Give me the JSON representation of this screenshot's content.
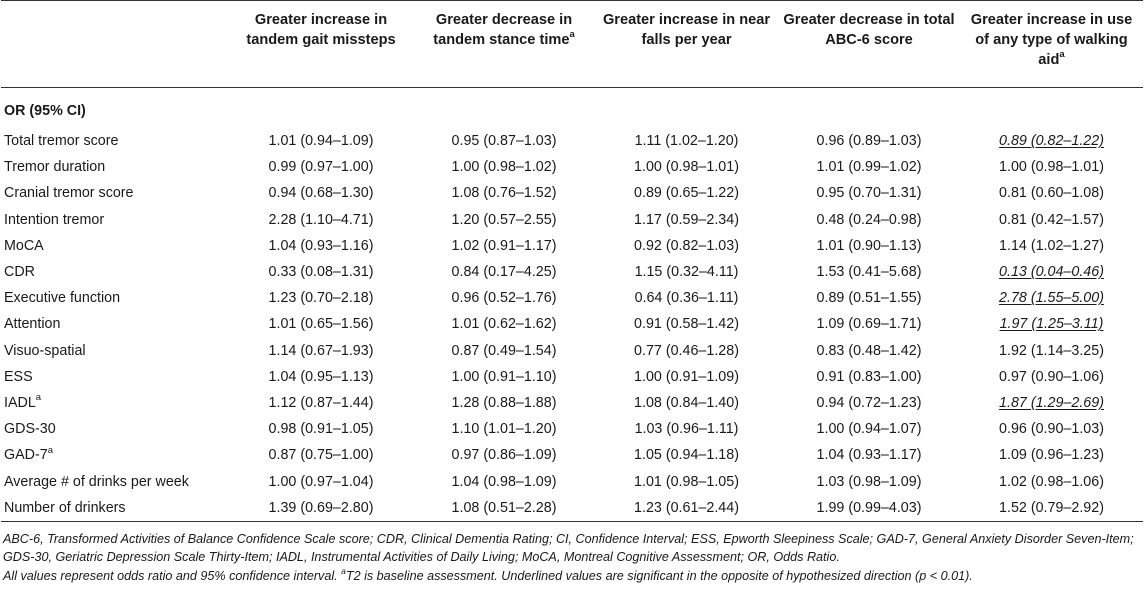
{
  "headers": [
    {
      "text": "Greater increase in tandem gait missteps",
      "sup": ""
    },
    {
      "text": "Greater decrease in tandem stance time",
      "sup": "a"
    },
    {
      "text": "Greater increase in near falls per year",
      "sup": ""
    },
    {
      "text": "Greater decrease in total ABC-6 score",
      "sup": ""
    },
    {
      "text": "Greater increase in use of any type of walking aid",
      "sup": "a"
    }
  ],
  "section_label": "OR (95% CI)",
  "rows": [
    {
      "label": "Total tremor score",
      "sup": "",
      "values": [
        "1.01 (0.94–1.09)",
        "0.95 (0.87–1.03)",
        "1.11 (1.02–1.20)",
        "0.96 (0.89–1.03)",
        "0.89 (0.82–1.22)"
      ],
      "underlined": [
        false,
        false,
        false,
        false,
        true
      ]
    },
    {
      "label": "Tremor duration",
      "sup": "",
      "values": [
        "0.99 (0.97–1.00)",
        "1.00 (0.98–1.02)",
        "1.00 (0.98–1.01)",
        "1.01 (0.99–1.02)",
        "1.00 (0.98–1.01)"
      ],
      "underlined": [
        false,
        false,
        false,
        false,
        false
      ]
    },
    {
      "label": "Cranial tremor score",
      "sup": "",
      "values": [
        "0.94 (0.68–1.30)",
        "1.08 (0.76–1.52)",
        "0.89 (0.65–1.22)",
        "0.95 (0.70–1.31)",
        "0.81 (0.60–1.08)"
      ],
      "underlined": [
        false,
        false,
        false,
        false,
        false
      ]
    },
    {
      "label": "Intention tremor",
      "sup": "",
      "values": [
        "2.28 (1.10–4.71)",
        "1.20 (0.57–2.55)",
        "1.17 (0.59–2.34)",
        "0.48 (0.24–0.98)",
        "0.81 (0.42–1.57)"
      ],
      "underlined": [
        false,
        false,
        false,
        false,
        false
      ]
    },
    {
      "label": "MoCA",
      "sup": "",
      "values": [
        "1.04 (0.93–1.16)",
        "1.02 (0.91–1.17)",
        "0.92 (0.82–1.03)",
        "1.01 (0.90–1.13)",
        "1.14 (1.02–1.27)"
      ],
      "underlined": [
        false,
        false,
        false,
        false,
        false
      ]
    },
    {
      "label": "CDR",
      "sup": "",
      "values": [
        "0.33 (0.08–1.31)",
        "0.84 (0.17–4.25)",
        "1.15 (0.32–4.11)",
        "1.53 (0.41–5.68)",
        "0.13 (0.04–0.46)"
      ],
      "underlined": [
        false,
        false,
        false,
        false,
        true
      ]
    },
    {
      "label": "Executive function",
      "sup": "",
      "values": [
        "1.23 (0.70–2.18)",
        "0.96 (0.52–1.76)",
        "0.64 (0.36–1.11)",
        "0.89 (0.51–1.55)",
        "2.78 (1.55–5.00)"
      ],
      "underlined": [
        false,
        false,
        false,
        false,
        true
      ]
    },
    {
      "label": "Attention",
      "sup": "",
      "values": [
        "1.01 (0.65–1.56)",
        "1.01 (0.62–1.62)",
        "0.91 (0.58–1.42)",
        "1.09 (0.69–1.71)",
        "1.97 (1.25–3.11)"
      ],
      "underlined": [
        false,
        false,
        false,
        false,
        true
      ]
    },
    {
      "label": "Visuo-spatial",
      "sup": "",
      "values": [
        "1.14 (0.67–1.93)",
        "0.87 (0.49–1.54)",
        "0.77 (0.46–1.28)",
        "0.83 (0.48–1.42)",
        "1.92 (1.14–3.25)"
      ],
      "underlined": [
        false,
        false,
        false,
        false,
        false
      ]
    },
    {
      "label": "ESS",
      "sup": "",
      "values": [
        "1.04 (0.95–1.13)",
        "1.00 (0.91–1.10)",
        "1.00 (0.91–1.09)",
        "0.91 (0.83–1.00)",
        "0.97 (0.90–1.06)"
      ],
      "underlined": [
        false,
        false,
        false,
        false,
        false
      ]
    },
    {
      "label": "IADL",
      "sup": "a",
      "values": [
        "1.12 (0.87–1.44)",
        "1.28 (0.88–1.88)",
        "1.08 (0.84–1.40)",
        "0.94 (0.72–1.23)",
        "1.87 (1.29–2.69)"
      ],
      "underlined": [
        false,
        false,
        false,
        false,
        true
      ]
    },
    {
      "label": "GDS-30",
      "sup": "",
      "values": [
        "0.98 (0.91–1.05)",
        "1.10 (1.01–1.20)",
        "1.03 (0.96–1.11)",
        "1.00 (0.94–1.07)",
        "0.96 (0.90–1.03)"
      ],
      "underlined": [
        false,
        false,
        false,
        false,
        false
      ]
    },
    {
      "label": "GAD-7",
      "sup": "a",
      "values": [
        "0.87 (0.75–1.00)",
        "0.97 (0.86–1.09)",
        "1.05 (0.94–1.18)",
        "1.04 (0.93–1.17)",
        "1.09 (0.96–1.23)"
      ],
      "underlined": [
        false,
        false,
        false,
        false,
        false
      ]
    },
    {
      "label": "Average # of drinks per week",
      "sup": "",
      "values": [
        "1.00 (0.97–1.04)",
        "1.04 (0.98–1.09)",
        "1.01 (0.98–1.05)",
        "1.03 (0.98–1.09)",
        "1.02 (0.98–1.06)"
      ],
      "underlined": [
        false,
        false,
        false,
        false,
        false
      ]
    },
    {
      "label": "Number of drinkers",
      "sup": "",
      "values": [
        "1.39 (0.69–2.80)",
        "1.08 (0.51–2.28)",
        "1.23 (0.61–2.44)",
        "1.99 (0.99–4.03)",
        "1.52 (0.79–2.92)"
      ],
      "underlined": [
        false,
        false,
        false,
        false,
        false
      ]
    }
  ],
  "footnotes": {
    "abbreviations": "ABC-6, Transformed Activities of Balance Confidence Scale score; CDR, Clinical Dementia Rating; CI, Confidence Interval; ESS, Epworth Sleepiness Scale; GAD-7, General Anxiety Disorder Seven-Item; GDS-30, Geriatric Depression Scale Thirty-Item; IADL, Instrumental Activities of Daily Living; MoCA, Montreal Cognitive Assessment; OR, Odds Ratio.",
    "note_start": "All values represent odds ratio and 95% confidence interval.",
    "note_sup": "a",
    "note_rest": "T2 is baseline assessment. Underlined values are significant in the opposite of hypothesized direction (p < 0.01)."
  }
}
